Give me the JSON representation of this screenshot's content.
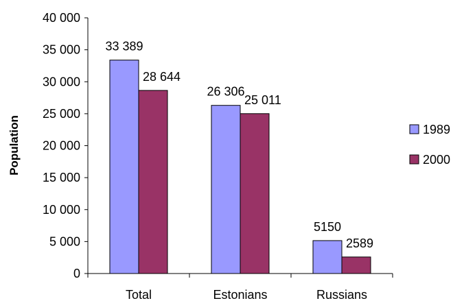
{
  "colors": {
    "series_1989": "#9999ff",
    "series_2000": "#993366",
    "axis": "#000000",
    "background": "#ffffff"
  },
  "chart_data": {
    "type": "bar",
    "title": "",
    "xlabel": "",
    "ylabel": "Population",
    "categories": [
      "Total",
      "Estonians",
      "Russians"
    ],
    "series": [
      {
        "name": "1989",
        "values": [
          33389,
          26306,
          5150
        ],
        "labels": [
          "33 389",
          "26 306",
          "5150"
        ]
      },
      {
        "name": "2000",
        "values": [
          28644,
          25011,
          2589
        ],
        "labels": [
          "28 644",
          "25 011",
          "2589"
        ]
      }
    ],
    "ylim": [
      0,
      40000
    ],
    "yticks": [
      0,
      5000,
      10000,
      15000,
      20000,
      25000,
      30000,
      35000,
      40000
    ],
    "ytick_labels": [
      "0",
      "5 000",
      "10 000",
      "15 000",
      "20 000",
      "25 000",
      "30 000",
      "35 000",
      "40 000"
    ],
    "grid": false,
    "legend_position": "right"
  }
}
